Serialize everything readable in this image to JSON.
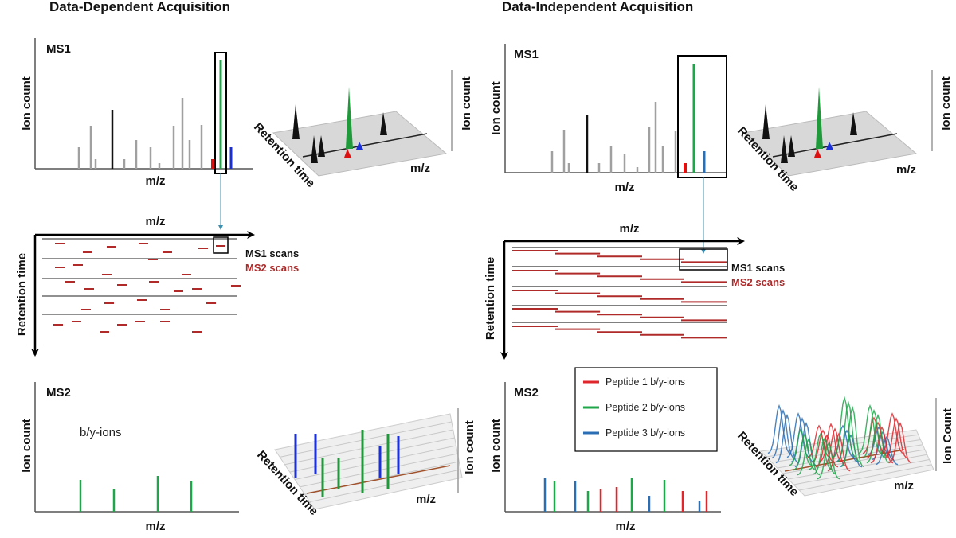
{
  "dda": {
    "title": "Data-Dependent Acquisition",
    "ms1_label": "MS1",
    "ion_count": "Ion count",
    "mz": "m/z",
    "retention_time": "Retention time",
    "ms1_scans": "MS1 scans",
    "ms2_scans": "MS2 scans",
    "ms2_label": "MS2",
    "by_ions": "b/y-ions"
  },
  "dia": {
    "title": "Data-Independent Acquisition",
    "ms1_label": "MS1",
    "ion_count": "Ion count",
    "ion_count_caps": "Ion Count",
    "mz": "m/z",
    "retention_time": "Retention time",
    "ms1_scans": "MS1 scans",
    "ms2_scans": "MS2 scans",
    "ms2_label": "MS2",
    "legend": [
      {
        "label": "Peptide 1 b/y-ions",
        "color": "#e0262b"
      },
      {
        "label": "Peptide 2 b/y-ions",
        "color": "#1fa54a"
      },
      {
        "label": "Peptide 3 b/y-ions",
        "color": "#2a6fb5"
      }
    ]
  },
  "colors": {
    "ms2_scan": "#b02a2a",
    "gray_peak": "#a0a0a0",
    "arrow": "#3d8fb0",
    "blue": "#1a2fd6"
  }
}
